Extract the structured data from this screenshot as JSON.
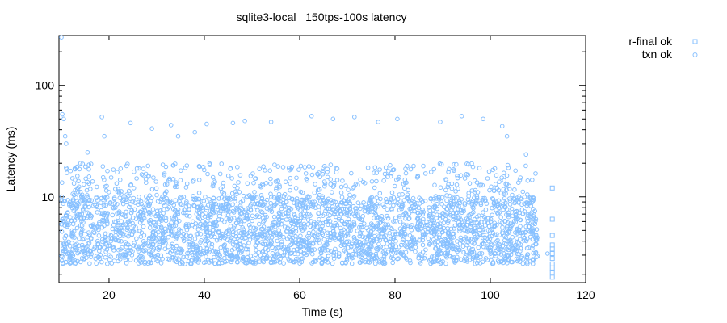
{
  "chart_data": {
    "type": "scatter",
    "title": "sqlite3-local   150tps-100s latency",
    "xlabel": "Time (s)",
    "ylabel": "Latency (ms)",
    "xlim": [
      9.5,
      120
    ],
    "ylim": [
      1.7,
      280
    ],
    "yscale": "log",
    "grid": false,
    "legend_position": "top-right outside",
    "xticks": [
      20,
      40,
      60,
      80,
      100,
      120
    ],
    "yticks": [
      10,
      100
    ],
    "colors": {
      "points": "#87c0ff",
      "axis": "#000000"
    },
    "series": [
      {
        "name": "r-final ok",
        "marker": "square",
        "x": [
          113,
          113,
          113,
          113,
          113,
          113,
          113,
          113,
          113,
          113,
          113
        ],
        "y": [
          12,
          6.3,
          4.5,
          3.7,
          3.4,
          3.1,
          2.8,
          2.5,
          2.3,
          2.1,
          1.9
        ]
      },
      {
        "name": "txn ok",
        "marker": "circle",
        "x": [
          10,
          10.2,
          10.5,
          10.8,
          11,
          14,
          15.5,
          18.5,
          19,
          24.5,
          29,
          33,
          34.5,
          38,
          40.5,
          46,
          48.5,
          54,
          62.5,
          67,
          71.5,
          76.5,
          80.5,
          89.5,
          94,
          98.5,
          102.5,
          103.5,
          107.5,
          112
        ],
        "y": [
          270,
          55,
          50,
          35,
          30,
          20,
          25,
          52,
          35,
          46,
          41,
          44,
          35,
          38,
          45,
          46,
          48,
          47,
          53,
          50,
          52,
          47,
          50,
          47,
          53,
          50,
          43,
          35,
          24,
          3.1
        ],
        "band": {
          "x_range": [
            10,
            110
          ],
          "typical_range": [
            2.5,
            10
          ],
          "scattered_max": 20
        }
      }
    ]
  }
}
